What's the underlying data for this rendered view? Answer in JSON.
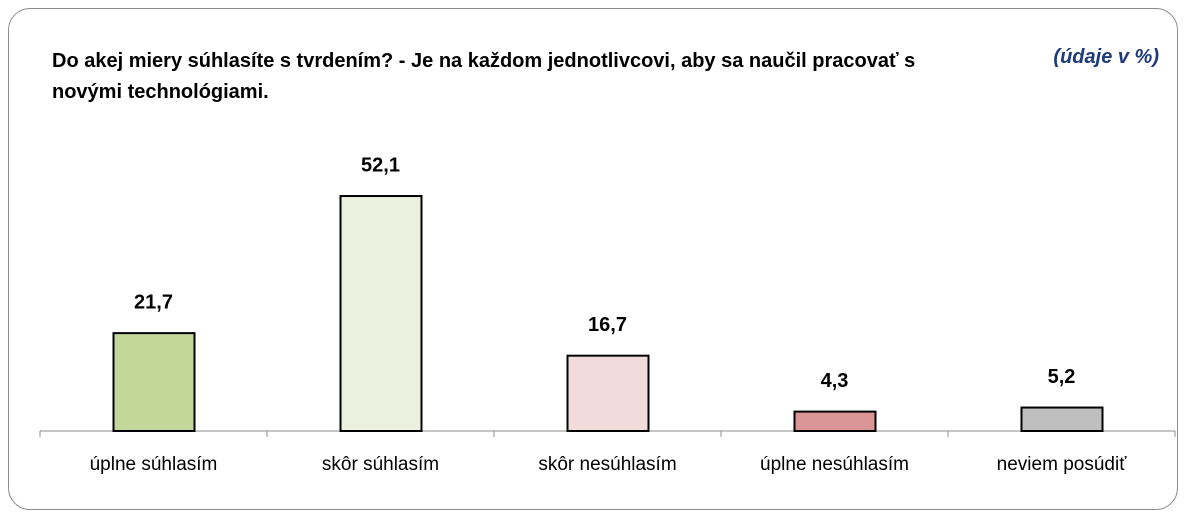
{
  "chart_data": {
    "type": "bar",
    "title": "Do akej miery súhlasíte s tvrdením? - Je na každom jednotlivcovi, aby sa naučil pracovať s novými technológiami.",
    "subtitle": "(údaje v %)",
    "categories": [
      "úplne súhlasím",
      "skôr súhlasím",
      "skôr nesúhlasím",
      "úplne nesúhlasím",
      "neviem posúdiť"
    ],
    "values": [
      21.7,
      52.1,
      16.7,
      4.3,
      5.2
    ],
    "value_labels": [
      "21,7",
      "52,1",
      "16,7",
      "4,3",
      "5,2"
    ],
    "colors": [
      "#c4d79b",
      "#ebf1de",
      "#f2dcdb",
      "#da9694",
      "#bfbfbf"
    ]
  }
}
